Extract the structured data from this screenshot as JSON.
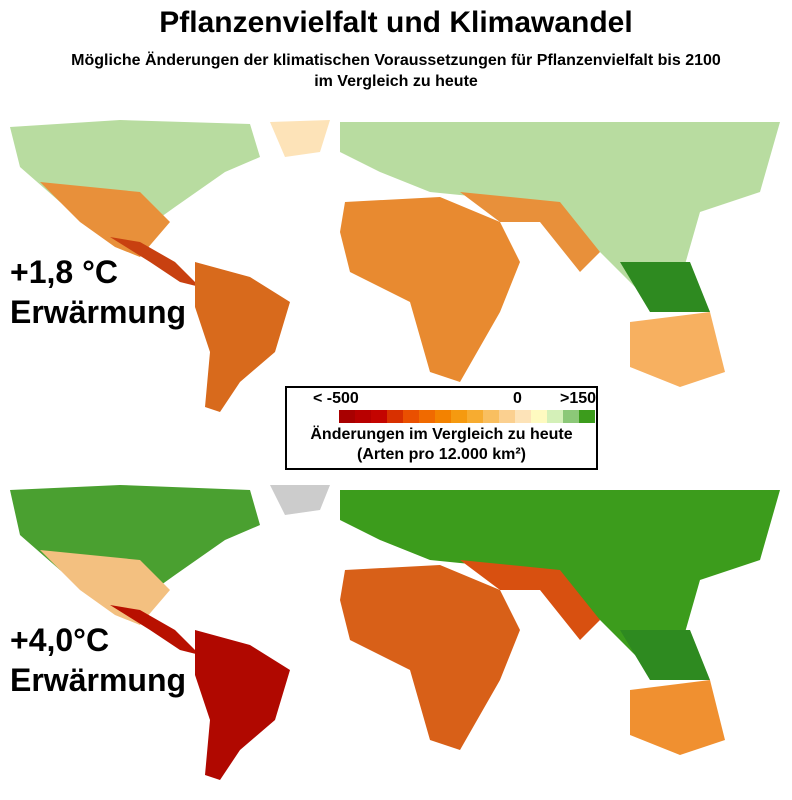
{
  "title": "Pflanzenvielfalt und Klimawandel",
  "subtitle_line1": "Mögliche Änderungen der klimatischen Voraussetzungen für Pflanzenvielfalt bis 2100",
  "subtitle_line2": "im Vergleich zu heute",
  "scenarios": [
    {
      "temp": "+1,8 °C",
      "label": "Erwärmung"
    },
    {
      "temp": "+4,0°C",
      "label": "Erwärmung"
    }
  ],
  "legend": {
    "min_label": "< -500",
    "zero_label": "0",
    "max_label": ">150",
    "caption1": "Änderungen im Vergleich zu heute",
    "caption2": "(Arten pro 12.000 km²)",
    "colors": [
      "#a80000",
      "#b80000",
      "#c40400",
      "#d83000",
      "#ea5000",
      "#f06a00",
      "#f38200",
      "#f59a10",
      "#f7ac30",
      "#f9bf60",
      "#fbd090",
      "#fde3b8",
      "#fefac0",
      "#d4f0b8",
      "#8cc878",
      "#3c9c1c"
    ]
  }
}
